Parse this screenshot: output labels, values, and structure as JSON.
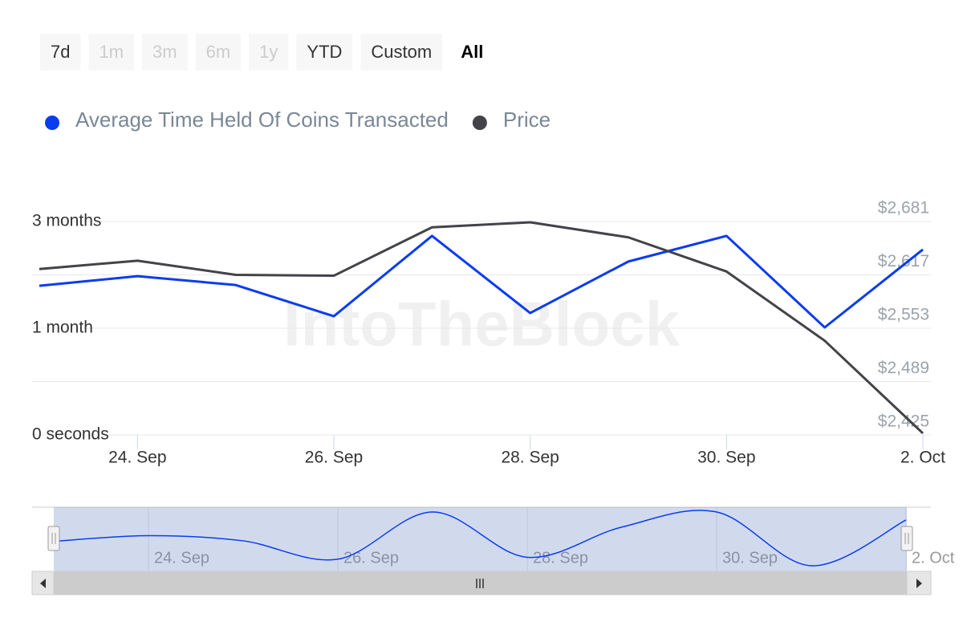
{
  "chart_data": {
    "type": "line",
    "watermark": "IntoTheBlock",
    "range_selector": {
      "buttons": [
        {
          "label": "7d",
          "state": "normal"
        },
        {
          "label": "1m",
          "state": "disabled"
        },
        {
          "label": "3m",
          "state": "disabled"
        },
        {
          "label": "6m",
          "state": "disabled"
        },
        {
          "label": "1y",
          "state": "disabled"
        },
        {
          "label": "YTD",
          "state": "normal"
        },
        {
          "label": "Custom",
          "state": "normal"
        },
        {
          "label": "All",
          "state": "selected"
        }
      ]
    },
    "categories": [
      null,
      "24. Sep",
      null,
      "26. Sep",
      null,
      "28. Sep",
      null,
      "30. Sep",
      null,
      "2. Oct"
    ],
    "series": [
      {
        "name": "Average Time Held Of Coins Transacted",
        "color": "#0a3cf0",
        "values": [
          55.9,
          59.5,
          56.2,
          44.5,
          74.6,
          45.7,
          65.0,
          74.6,
          40.3,
          69.5
        ]
      },
      {
        "name": "Price",
        "color": "#434348",
        "axis": "y2",
        "values": [
          2624,
          2634,
          2617,
          2616,
          2674,
          2680,
          2662,
          2621,
          2538,
          2427
        ]
      }
    ],
    "ylim": [
      0,
      80
    ],
    "yticks": [
      {
        "value": 0,
        "label": "0 seconds"
      },
      {
        "value": 40,
        "label": "1 month"
      },
      {
        "value": 80,
        "label": "3 months"
      }
    ],
    "y2lim": [
      2425,
      2681
    ],
    "y2ticks": [
      {
        "value": 2425,
        "label": "$2,425"
      },
      {
        "value": 2489,
        "label": "$2,489"
      },
      {
        "value": 2553,
        "label": "$2,553"
      },
      {
        "value": 2617,
        "label": "$2,617"
      },
      {
        "value": 2681,
        "label": "$2,681"
      }
    ],
    "grid": true
  }
}
